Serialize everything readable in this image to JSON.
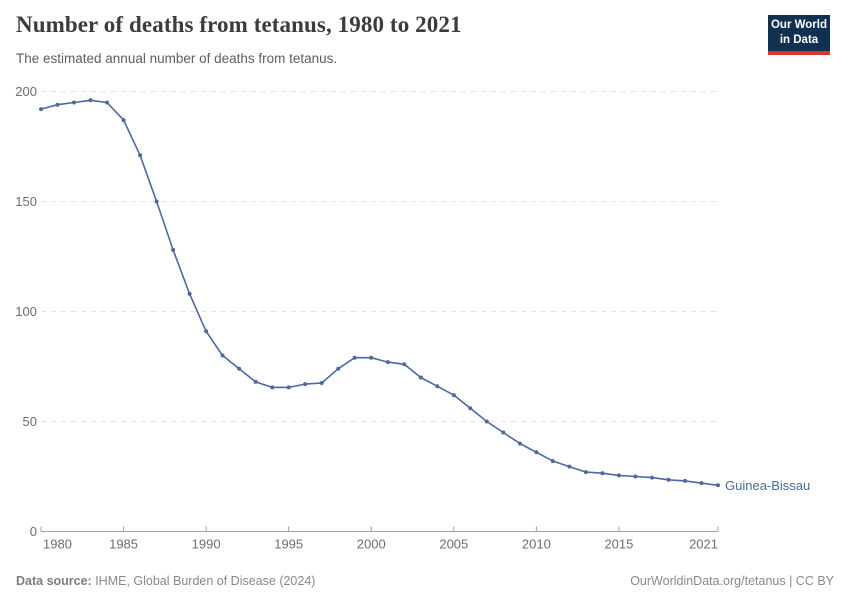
{
  "header": {
    "title": "Number of deaths from tetanus, 1980 to 2021",
    "subtitle": "The estimated annual number of deaths from tetanus.",
    "logo": {
      "line1": "Our World",
      "line2": "in Data",
      "bg_color": "#12304f",
      "accent_color": "#d8352c"
    }
  },
  "chart_data": {
    "type": "line",
    "title": "Number of deaths from tetanus, 1980 to 2021",
    "subtitle": "The estimated annual number of deaths from tetanus.",
    "xlabel": "",
    "ylabel": "",
    "xlim": [
      1980,
      2021
    ],
    "ylim": [
      0,
      200
    ],
    "x_ticks": [
      1980,
      1985,
      1990,
      1995,
      2000,
      2005,
      2010,
      2015,
      2021
    ],
    "y_ticks": [
      0,
      50,
      100,
      150,
      200
    ],
    "grid": "horizontal-dashed",
    "legend_position": "end-of-line-label",
    "series": [
      {
        "name": "Guinea-Bissau",
        "color": "#4c6a9c",
        "x": [
          1980,
          1981,
          1982,
          1983,
          1984,
          1985,
          1986,
          1987,
          1988,
          1989,
          1990,
          1991,
          1992,
          1993,
          1994,
          1995,
          1996,
          1997,
          1998,
          1999,
          2000,
          2001,
          2002,
          2003,
          2004,
          2005,
          2006,
          2007,
          2008,
          2009,
          2010,
          2011,
          2012,
          2013,
          2014,
          2015,
          2016,
          2017,
          2018,
          2019,
          2020,
          2021
        ],
        "values": [
          192,
          194,
          195,
          196,
          195,
          187,
          171,
          150,
          128,
          108,
          91,
          80,
          74,
          68,
          65.5,
          65.5,
          67,
          67.5,
          74,
          79,
          79,
          77,
          76,
          70,
          66,
          62,
          56,
          50,
          45,
          40,
          36,
          32,
          29.5,
          27,
          26.5,
          25.5,
          25,
          24.5,
          23.5,
          23,
          22,
          21
        ]
      }
    ]
  },
  "footer": {
    "datasource_label": "Data source:",
    "datasource_text": " IHME, Global Burden of Disease (2024)",
    "attribution": "OurWorldinData.org/tetanus | CC BY"
  }
}
